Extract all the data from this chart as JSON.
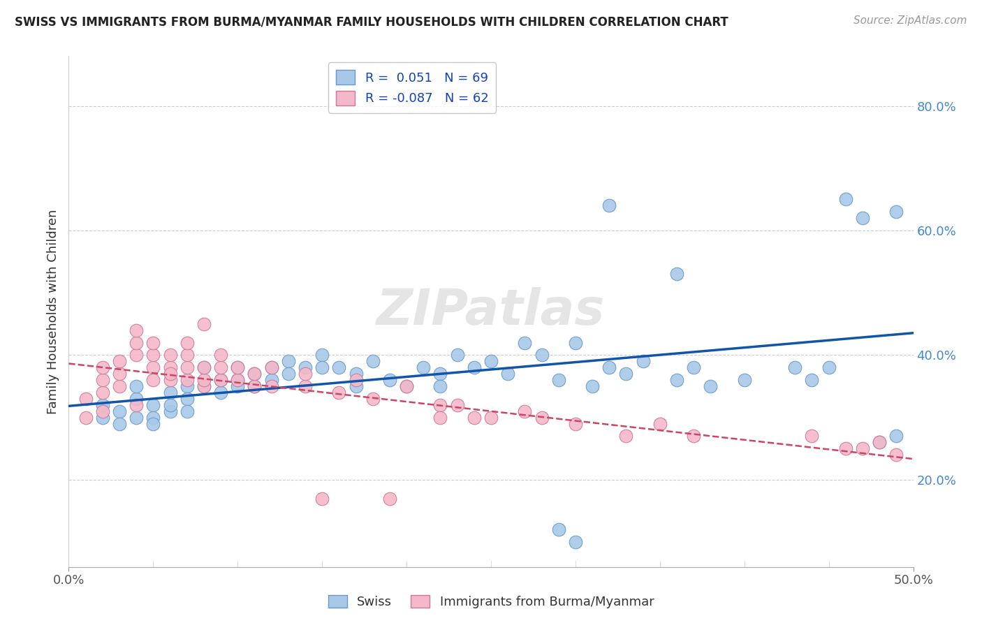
{
  "title": "SWISS VS IMMIGRANTS FROM BURMA/MYANMAR FAMILY HOUSEHOLDS WITH CHILDREN CORRELATION CHART",
  "source": "Source: ZipAtlas.com",
  "ylabel": "Family Households with Children",
  "right_yticks": [
    "20.0%",
    "40.0%",
    "60.0%",
    "80.0%"
  ],
  "right_ytick_vals": [
    0.2,
    0.4,
    0.6,
    0.8
  ],
  "xlim": [
    0.0,
    0.5
  ],
  "ylim": [
    0.06,
    0.88
  ],
  "legend_swiss": "R =  0.051   N = 69",
  "legend_burma": "R = -0.087   N = 62",
  "swiss_color": "#a8c8e8",
  "burma_color": "#f4b8c8",
  "swiss_edge_color": "#6699cc",
  "burma_edge_color": "#cc7799",
  "swiss_line_color": "#1155aa",
  "burma_line_color": "#cc4466",
  "watermark_text": "ZIPatlas",
  "bottom_legend_labels": [
    "Swiss",
    "Immigrants from Burma/Myanmar"
  ],
  "swiss_x": [
    0.02,
    0.02,
    0.03,
    0.03,
    0.04,
    0.04,
    0.04,
    0.05,
    0.05,
    0.05,
    0.06,
    0.06,
    0.06,
    0.07,
    0.07,
    0.07,
    0.08,
    0.08,
    0.09,
    0.09,
    0.1,
    0.1,
    0.1,
    0.11,
    0.11,
    0.12,
    0.12,
    0.13,
    0.13,
    0.14,
    0.15,
    0.15,
    0.16,
    0.17,
    0.17,
    0.18,
    0.19,
    0.2,
    0.21,
    0.22,
    0.22,
    0.23,
    0.24,
    0.25,
    0.26,
    0.27,
    0.28,
    0.29,
    0.3,
    0.31,
    0.32,
    0.33,
    0.34,
    0.36,
    0.37,
    0.38,
    0.4,
    0.43,
    0.44,
    0.45,
    0.46,
    0.47,
    0.48,
    0.49,
    0.32,
    0.3,
    0.29,
    0.49,
    0.36
  ],
  "swiss_y": [
    0.3,
    0.32,
    0.31,
    0.29,
    0.33,
    0.35,
    0.3,
    0.32,
    0.3,
    0.29,
    0.34,
    0.31,
    0.32,
    0.35,
    0.33,
    0.31,
    0.35,
    0.38,
    0.34,
    0.36,
    0.36,
    0.38,
    0.35,
    0.37,
    0.35,
    0.38,
    0.36,
    0.39,
    0.37,
    0.38,
    0.4,
    0.38,
    0.38,
    0.37,
    0.35,
    0.39,
    0.36,
    0.35,
    0.38,
    0.37,
    0.35,
    0.4,
    0.38,
    0.39,
    0.37,
    0.42,
    0.4,
    0.36,
    0.42,
    0.35,
    0.38,
    0.37,
    0.39,
    0.36,
    0.38,
    0.35,
    0.36,
    0.38,
    0.36,
    0.38,
    0.65,
    0.62,
    0.26,
    0.27,
    0.64,
    0.1,
    0.12,
    0.63,
    0.53
  ],
  "burma_x": [
    0.01,
    0.01,
    0.02,
    0.02,
    0.02,
    0.02,
    0.03,
    0.03,
    0.03,
    0.04,
    0.04,
    0.04,
    0.04,
    0.05,
    0.05,
    0.05,
    0.05,
    0.06,
    0.06,
    0.06,
    0.06,
    0.07,
    0.07,
    0.07,
    0.07,
    0.08,
    0.08,
    0.08,
    0.08,
    0.09,
    0.09,
    0.09,
    0.1,
    0.1,
    0.11,
    0.11,
    0.12,
    0.12,
    0.14,
    0.14,
    0.15,
    0.16,
    0.17,
    0.18,
    0.19,
    0.2,
    0.22,
    0.22,
    0.23,
    0.24,
    0.25,
    0.27,
    0.28,
    0.3,
    0.33,
    0.35,
    0.37,
    0.44,
    0.46,
    0.47,
    0.48,
    0.49
  ],
  "burma_y": [
    0.3,
    0.33,
    0.31,
    0.34,
    0.36,
    0.38,
    0.35,
    0.37,
    0.39,
    0.32,
    0.4,
    0.42,
    0.44,
    0.38,
    0.4,
    0.36,
    0.42,
    0.36,
    0.38,
    0.4,
    0.37,
    0.36,
    0.38,
    0.4,
    0.42,
    0.35,
    0.36,
    0.38,
    0.45,
    0.36,
    0.38,
    0.4,
    0.36,
    0.38,
    0.35,
    0.37,
    0.35,
    0.38,
    0.35,
    0.37,
    0.17,
    0.34,
    0.36,
    0.33,
    0.17,
    0.35,
    0.32,
    0.3,
    0.32,
    0.3,
    0.3,
    0.31,
    0.3,
    0.29,
    0.27,
    0.29,
    0.27,
    0.27,
    0.25,
    0.25,
    0.26,
    0.24
  ]
}
